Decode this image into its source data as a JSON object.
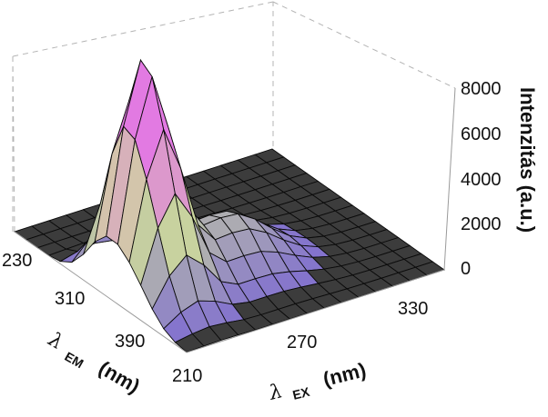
{
  "chart_data": {
    "type": "surface",
    "x_axis": {
      "label_symbol": "λ",
      "label_subscript": "EX",
      "label_unit": "(nm)",
      "ticks": [
        "210",
        "270",
        "330"
      ],
      "range": [
        210,
        350
      ]
    },
    "y_axis": {
      "label_symbol": "λ",
      "label_subscript": "EM",
      "label_unit": "(nm)",
      "ticks": [
        "230",
        "310",
        "390"
      ],
      "range": [
        220,
        430
      ]
    },
    "z_axis": {
      "label": "Intenzitás (a.u.)",
      "ticks": [
        "0",
        "2000",
        "4000",
        "6000",
        "8000"
      ],
      "range": [
        0,
        8000
      ]
    },
    "peaks": [
      {
        "ex": 228,
        "em": 330,
        "intensity": 8500
      },
      {
        "ex": 228,
        "em": 365,
        "intensity": 4200
      },
      {
        "ex": 270,
        "em": 345,
        "intensity": 2400
      }
    ],
    "colors": {
      "floor": "#3c3c3c",
      "mesh_line": "#0a0a0a",
      "box_line": "#b4b4b4",
      "peak_top": "#e27ae2",
      "peak_mid": "#cfdc9a",
      "peak_low": "#7d6ad2"
    },
    "grid": "dashed bounding box"
  }
}
